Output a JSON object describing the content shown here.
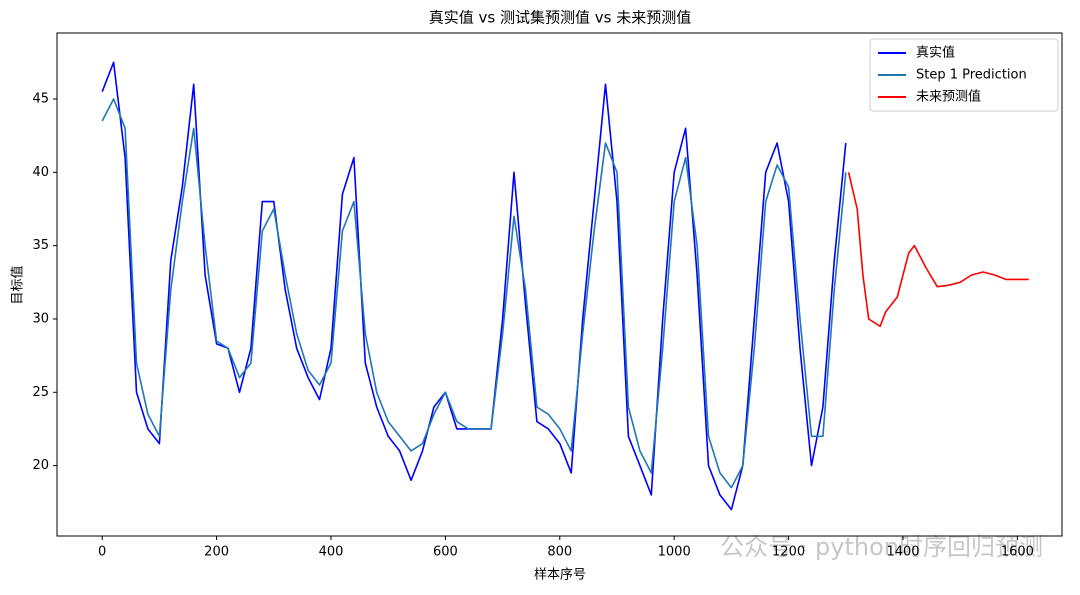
{
  "chart_data": {
    "type": "line",
    "title": "真实值 vs 测试集预测值 vs 未来预测值",
    "x_label": "样本序号",
    "y_label": "目标值",
    "watermark": "公众号 · python时序回归预测",
    "xlim": [
      -79,
      1678
    ],
    "ylim": [
      15.2,
      49.5
    ],
    "xticks": [
      0,
      200,
      400,
      600,
      800,
      1000,
      1200,
      1400,
      1600
    ],
    "yticks": [
      20,
      25,
      30,
      35,
      40,
      45
    ],
    "legend": "upper right",
    "series": [
      {
        "name": "真实值",
        "color": "#0000ff",
        "x": [
          0,
          20,
          40,
          60,
          80,
          100,
          120,
          140,
          160,
          180,
          200,
          220,
          240,
          260,
          280,
          300,
          320,
          340,
          360,
          380,
          400,
          420,
          440,
          460,
          480,
          500,
          520,
          540,
          560,
          580,
          600,
          620,
          640,
          660,
          680,
          700,
          720,
          740,
          760,
          780,
          800,
          820,
          840,
          860,
          880,
          900,
          920,
          940,
          960,
          980,
          1000,
          1020,
          1040,
          1060,
          1080,
          1100,
          1120,
          1140,
          1160,
          1180,
          1200,
          1220,
          1240,
          1260,
          1280,
          1300
        ],
        "values": [
          45.5,
          47.5,
          41,
          25,
          22.5,
          21.5,
          34,
          39,
          46,
          33,
          28.3,
          28,
          25,
          28,
          38,
          38,
          32,
          28,
          26,
          24.5,
          28,
          38.5,
          41,
          27,
          24,
          22,
          21,
          19,
          21,
          24,
          25,
          22.5,
          22.5,
          22.5,
          22.5,
          30,
          40,
          31,
          23,
          22.5,
          21.5,
          19.5,
          30,
          38,
          46,
          38,
          22,
          20,
          18,
          30,
          40,
          43,
          33,
          20,
          18,
          17,
          20,
          30,
          40,
          42,
          38,
          28,
          20,
          24,
          34,
          42
        ]
      },
      {
        "name": "Step 1 Prediction",
        "color": "#1f77b4",
        "x": [
          0,
          20,
          40,
          60,
          80,
          100,
          120,
          140,
          160,
          180,
          200,
          220,
          240,
          260,
          280,
          300,
          320,
          340,
          360,
          380,
          400,
          420,
          440,
          460,
          480,
          500,
          520,
          540,
          560,
          580,
          600,
          620,
          640,
          660,
          680,
          700,
          720,
          740,
          760,
          780,
          800,
          820,
          840,
          860,
          880,
          900,
          920,
          940,
          960,
          980,
          1000,
          1020,
          1040,
          1060,
          1080,
          1100,
          1120,
          1140,
          1160,
          1180,
          1200,
          1220,
          1240,
          1260,
          1280,
          1300
        ],
        "values": [
          43.5,
          45,
          43,
          27,
          23.5,
          22,
          32,
          38,
          43,
          35,
          28.5,
          28,
          26,
          27,
          36,
          37.5,
          33,
          29,
          26.5,
          25.5,
          27,
          36,
          38,
          29,
          25,
          23,
          22,
          21,
          21.5,
          23.5,
          25,
          23,
          22.5,
          22.5,
          22.5,
          29,
          37,
          32,
          24,
          23.5,
          22.5,
          21,
          29,
          36,
          42,
          40,
          24,
          21,
          19.5,
          28,
          38,
          41,
          35,
          22,
          19.5,
          18.5,
          20,
          28,
          38,
          40.5,
          39,
          30,
          22,
          22,
          32,
          40
        ]
      },
      {
        "name": "未来预测值",
        "color": "#ff0000",
        "x": [
          1305,
          1320,
          1330,
          1340,
          1360,
          1370,
          1390,
          1400,
          1410,
          1420,
          1440,
          1460,
          1480,
          1500,
          1520,
          1540,
          1560,
          1580,
          1600,
          1620
        ],
        "values": [
          40,
          37.5,
          33,
          30,
          29.5,
          30.5,
          31.5,
          33,
          34.5,
          35,
          33.5,
          32.2,
          32.3,
          32.5,
          33,
          33.2,
          33,
          32.7,
          32.7,
          32.7
        ]
      }
    ]
  }
}
